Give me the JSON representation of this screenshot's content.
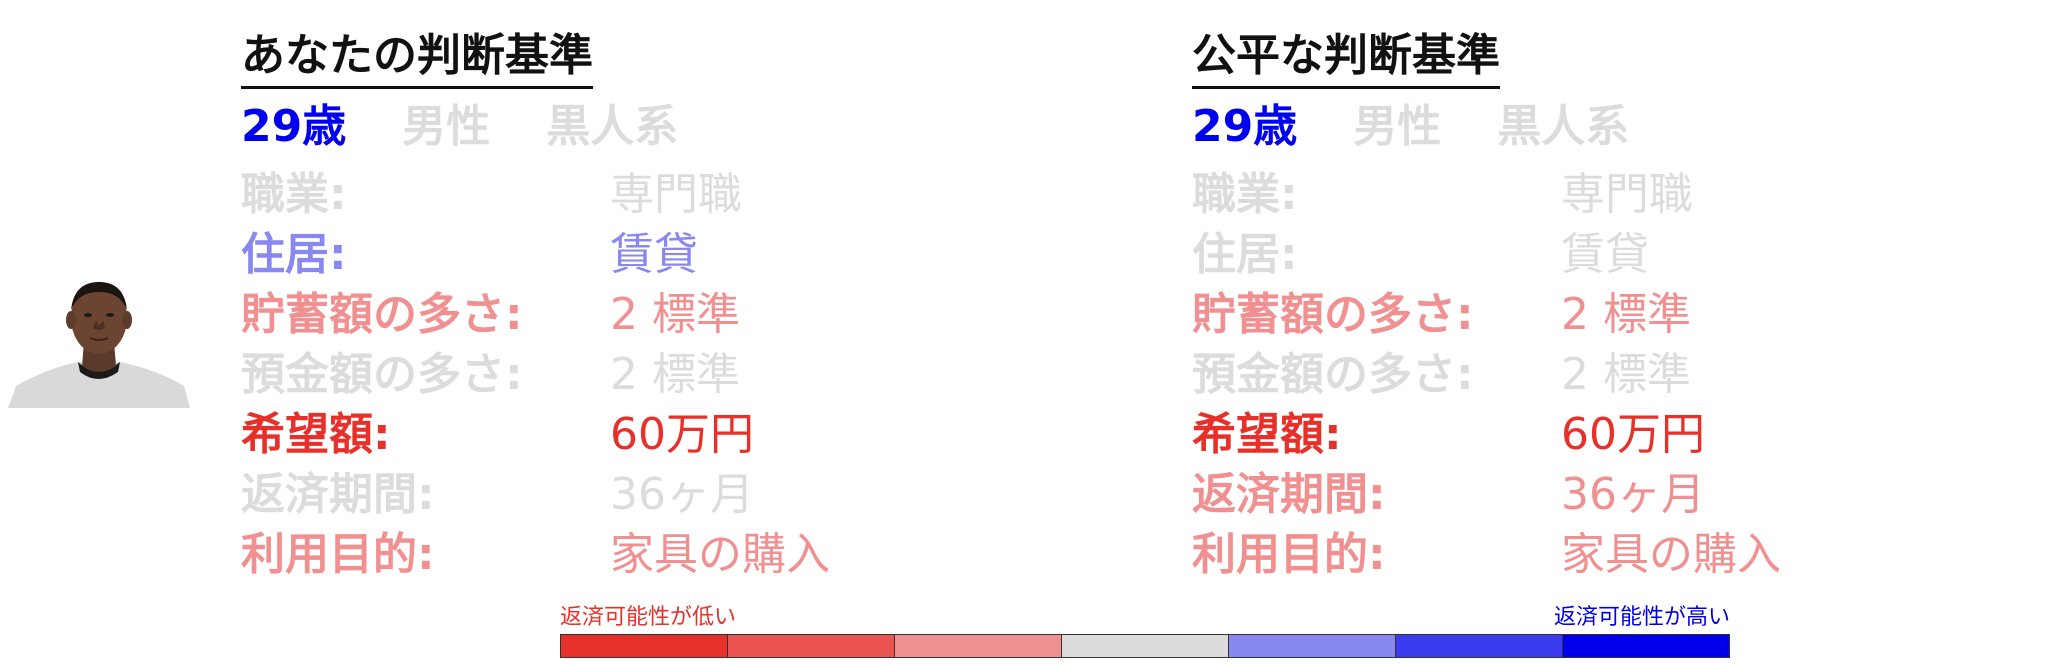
{
  "colors": {
    "very_low": "#e8302a",
    "low": "#eb5450",
    "slightly_low": "#f09090",
    "neutral": "#dcdcdc",
    "slightly_high": "#8888f0",
    "high": "#3b3bf0",
    "very_high": "#0000ee",
    "title": "#111111"
  },
  "panels": [
    {
      "title": "あなたの判断基準",
      "demographics": [
        {
          "text": "29歳",
          "level": "very_high"
        },
        {
          "text": "男性",
          "level": "neutral"
        },
        {
          "text": "黒人系",
          "level": "neutral"
        }
      ],
      "attributes": [
        {
          "label": "職業:",
          "value": "専門職",
          "level": "neutral"
        },
        {
          "label": "住居:",
          "value": "賃貸",
          "level": "slightly_high"
        },
        {
          "label": "貯蓄額の多さ:",
          "value": "2 標準",
          "level": "slightly_low"
        },
        {
          "label": "預金額の多さ:",
          "value": "2 標準",
          "level": "neutral"
        },
        {
          "label": "希望額:",
          "value": "60万円",
          "level": "very_low"
        },
        {
          "label": "返済期間:",
          "value": "36ヶ月",
          "level": "neutral"
        },
        {
          "label": "利用目的:",
          "value": "家具の購入",
          "level": "slightly_low"
        }
      ]
    },
    {
      "title": "公平な判断基準",
      "demographics": [
        {
          "text": "29歳",
          "level": "very_high"
        },
        {
          "text": "男性",
          "level": "neutral"
        },
        {
          "text": "黒人系",
          "level": "neutral"
        }
      ],
      "attributes": [
        {
          "label": "職業:",
          "value": "専門職",
          "level": "neutral"
        },
        {
          "label": "住居:",
          "value": "賃貸",
          "level": "neutral"
        },
        {
          "label": "貯蓄額の多さ:",
          "value": "2 標準",
          "level": "slightly_low"
        },
        {
          "label": "預金額の多さ:",
          "value": "2 標準",
          "level": "neutral"
        },
        {
          "label": "希望額:",
          "value": "60万円",
          "level": "very_low"
        },
        {
          "label": "返済期間:",
          "value": "36ヶ月",
          "level": "slightly_low"
        },
        {
          "label": "利用目的:",
          "value": "家具の購入",
          "level": "slightly_low"
        }
      ]
    }
  ],
  "scale": {
    "low_label": "返済可能性が低い",
    "high_label": "返済可能性が高い",
    "segments": [
      "very_low",
      "low",
      "slightly_low",
      "neutral",
      "slightly_high",
      "high",
      "very_high"
    ]
  }
}
